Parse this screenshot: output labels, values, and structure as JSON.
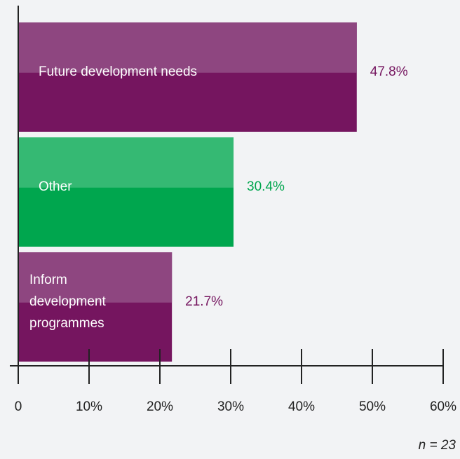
{
  "chart_data": {
    "type": "bar",
    "orientation": "horizontal",
    "categories": [
      "Future development needs",
      "Other",
      "Inform development programmes"
    ],
    "category_lines": [
      [
        "Future development needs"
      ],
      [
        "Other"
      ],
      [
        "Inform",
        "development",
        "programmes"
      ]
    ],
    "values": [
      47.8,
      30.4,
      21.7
    ],
    "value_labels": [
      "47.8%",
      "30.4%",
      "21.7%"
    ],
    "colors": [
      "#75155f",
      "#00a64e",
      "#75155f"
    ],
    "highlight_colors": [
      "#8e4680",
      "#35b973",
      "#8e4680"
    ],
    "xlim": [
      0,
      60
    ],
    "ticks": [
      0,
      10,
      20,
      30,
      40,
      50,
      60
    ],
    "tick_labels": [
      "0",
      "10%",
      "20%",
      "30%",
      "40%",
      "50%",
      "60%"
    ],
    "grid": false,
    "legend": "none",
    "note": "n = 23"
  }
}
